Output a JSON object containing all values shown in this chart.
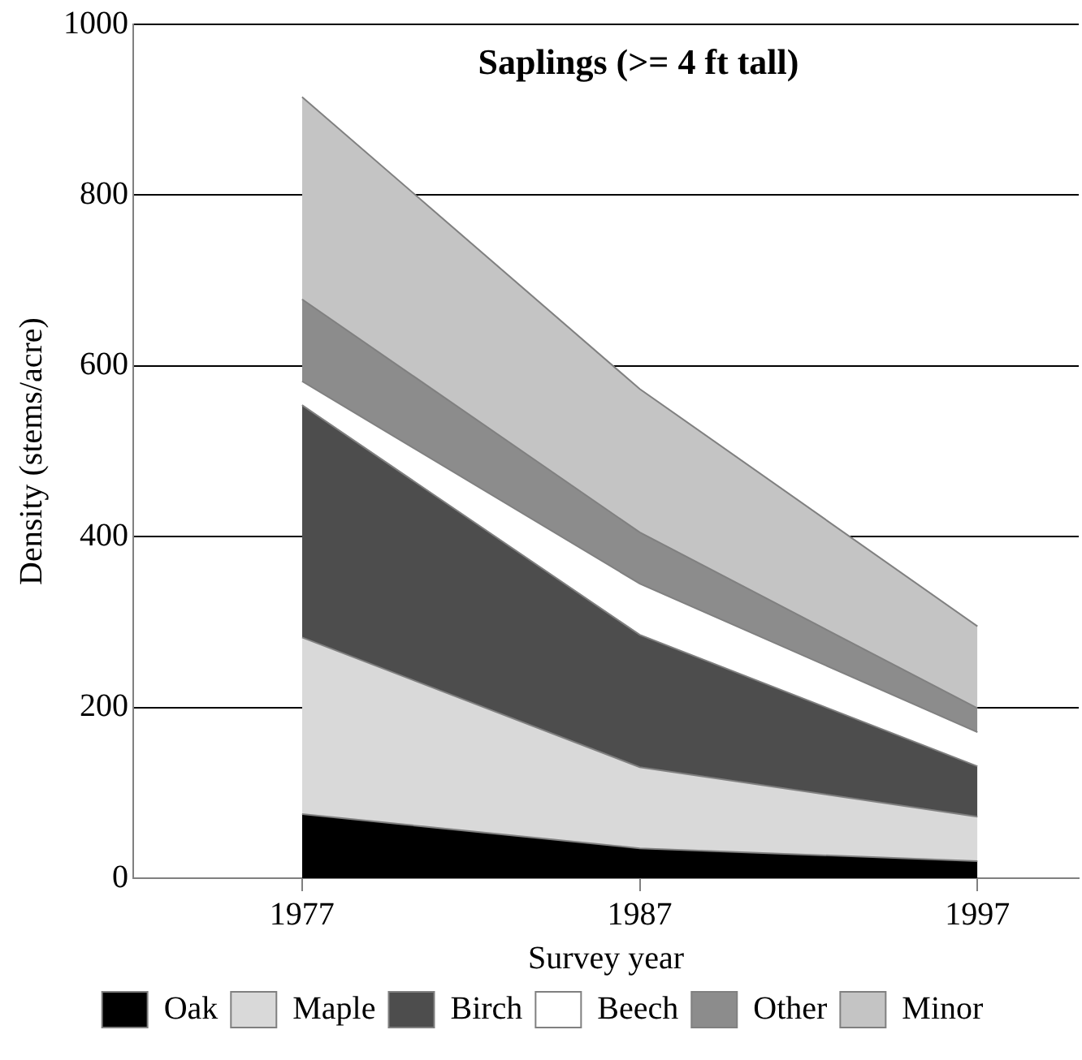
{
  "chart_data": {
    "type": "area",
    "stacked": true,
    "title": "Saplings (>= 4 ft tall)",
    "xlabel": "Survey year",
    "ylabel": "Density (stems/acre)",
    "x": [
      1977,
      1987,
      1997
    ],
    "xlim": [
      1972,
      2000
    ],
    "xticks": [
      1977,
      1987,
      1997
    ],
    "ylim": [
      0,
      1000
    ],
    "yticks": [
      0,
      200,
      400,
      600,
      800,
      1000
    ],
    "grid": "y",
    "legend": "bottom",
    "series": [
      {
        "name": "Oak",
        "color": "#000000",
        "values": [
          75,
          35,
          20
        ]
      },
      {
        "name": "Maple",
        "color": "#d9d9d9",
        "values": [
          207,
          95,
          52
        ]
      },
      {
        "name": "Birch",
        "color": "#4d4d4d",
        "values": [
          272,
          155,
          59
        ]
      },
      {
        "name": "Beech",
        "color": "#ffffff",
        "values": [
          28,
          60,
          40
        ]
      },
      {
        "name": "Other",
        "color": "#8c8c8c",
        "values": [
          96,
          60,
          28
        ]
      },
      {
        "name": "Minor",
        "color": "#c4c4c4",
        "values": [
          237,
          168,
          96
        ]
      }
    ]
  }
}
